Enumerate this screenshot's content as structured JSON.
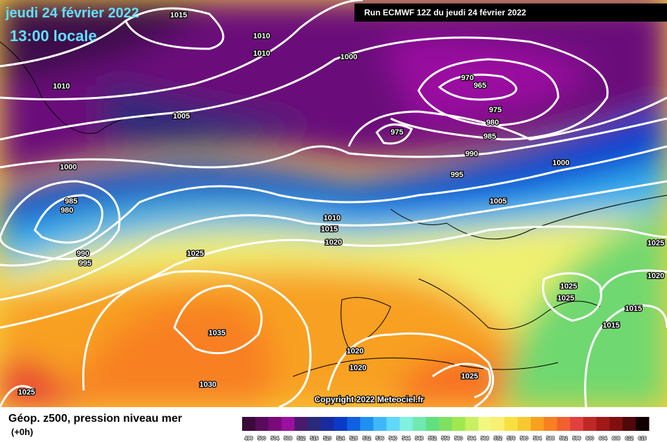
{
  "header": {
    "date": "jeudi 24 février 2022",
    "time": "13:00 locale",
    "run": "Run ECMWF 12Z du jeudi 24 février 2022"
  },
  "map": {
    "isobar_labels": [
      1015,
      1010,
      1010,
      1000,
      970,
      965,
      1010,
      1005,
      975,
      980,
      975,
      985,
      990,
      1000,
      1000,
      995,
      985,
      980,
      1005,
      1010,
      1015,
      1020,
      1025,
      990,
      995,
      1025,
      1020,
      1025,
      1025,
      1015,
      1015,
      1035,
      1020,
      1020,
      1025,
      1030,
      1025
    ],
    "copyright": "Copyright 2022 Meteociel.fr"
  },
  "legend": {
    "title": "Géop. z500, pression niveau mer",
    "subtitle": "(+0h)",
    "ticks": [
      496,
      500,
      504,
      508,
      512,
      516,
      520,
      524,
      528,
      532,
      536,
      540,
      544,
      548,
      552,
      556,
      560,
      564,
      568,
      572,
      576,
      580,
      584,
      588,
      592,
      596,
      600,
      604,
      608,
      612,
      616
    ],
    "colors": [
      "#3a0a3a",
      "#5a0a5a",
      "#7a0a7a",
      "#9a10a0",
      "#4a1a6a",
      "#2a2a7a",
      "#1a2aa0",
      "#0a3ac8",
      "#1060e0",
      "#2090f0",
      "#40b8f8",
      "#60d8f8",
      "#80f0e0",
      "#70e8b0",
      "#60e080",
      "#80e060",
      "#a0e850",
      "#c8f060",
      "#f0f880",
      "#f8f070",
      "#f8e040",
      "#f8c830",
      "#f8a020",
      "#f88020",
      "#f06030",
      "#e04040",
      "#c02828",
      "#a01818",
      "#801010",
      "#500808",
      "#100000"
    ]
  }
}
